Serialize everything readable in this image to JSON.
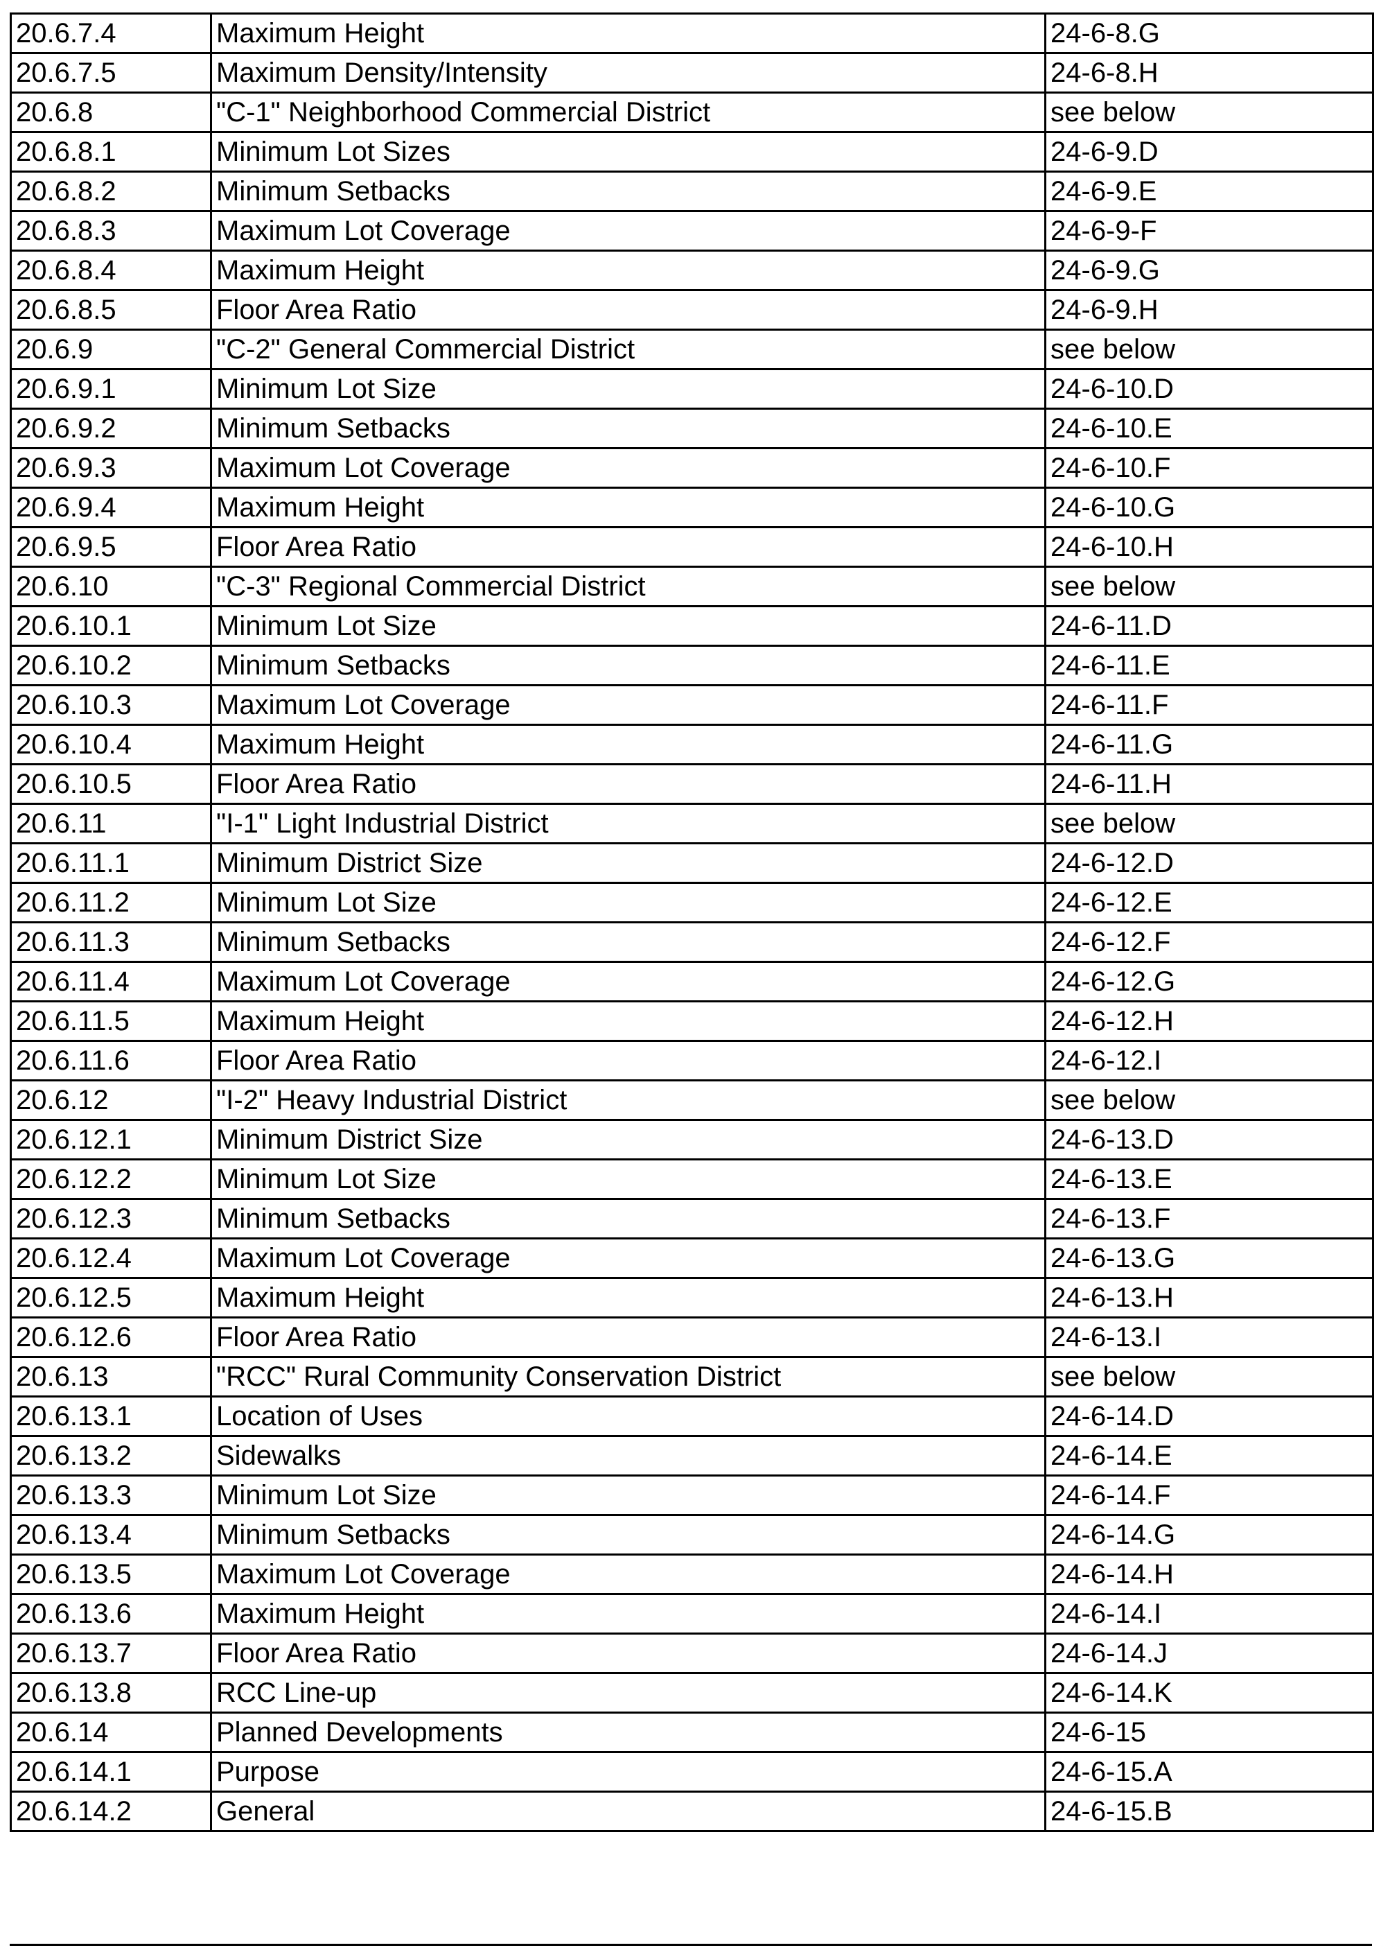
{
  "rows": [
    [
      "20.6.7.4",
      "Maximum Height",
      "24-6-8.G"
    ],
    [
      "20.6.7.5",
      "Maximum Density/Intensity",
      "24-6-8.H"
    ],
    [
      "20.6.8",
      "\"C-1\" Neighborhood Commercial District",
      "see below"
    ],
    [
      "20.6.8.1",
      "Minimum Lot Sizes",
      "24-6-9.D"
    ],
    [
      "20.6.8.2",
      "Minimum Setbacks",
      "24-6-9.E"
    ],
    [
      "20.6.8.3",
      "Maximum Lot Coverage",
      "24-6-9-F"
    ],
    [
      "20.6.8.4",
      "Maximum Height",
      "24-6-9.G"
    ],
    [
      "20.6.8.5",
      "Floor Area Ratio",
      "24-6-9.H"
    ],
    [
      "20.6.9",
      "\"C-2\" General Commercial District",
      "see below"
    ],
    [
      "20.6.9.1",
      "Minimum Lot Size",
      "24-6-10.D"
    ],
    [
      "20.6.9.2",
      "Minimum Setbacks",
      "24-6-10.E"
    ],
    [
      "20.6.9.3",
      "Maximum Lot Coverage",
      "24-6-10.F"
    ],
    [
      "20.6.9.4",
      "Maximum Height",
      "24-6-10.G"
    ],
    [
      "20.6.9.5",
      "Floor Area Ratio",
      "24-6-10.H"
    ],
    [
      "20.6.10",
      "\"C-3\" Regional Commercial District",
      "see below"
    ],
    [
      "20.6.10.1",
      "Minimum Lot Size",
      "24-6-11.D"
    ],
    [
      "20.6.10.2",
      "Minimum Setbacks",
      "24-6-11.E"
    ],
    [
      "20.6.10.3",
      "Maximum Lot Coverage",
      "24-6-11.F"
    ],
    [
      "20.6.10.4",
      "Maximum Height",
      "24-6-11.G"
    ],
    [
      "20.6.10.5",
      "Floor Area Ratio",
      "24-6-11.H"
    ],
    [
      "20.6.11",
      "\"I-1\" Light Industrial District",
      "see below"
    ],
    [
      "20.6.11.1",
      "Minimum District Size",
      "24-6-12.D"
    ],
    [
      "20.6.11.2",
      "Minimum Lot Size",
      "24-6-12.E"
    ],
    [
      "20.6.11.3",
      "Minimum Setbacks",
      "24-6-12.F"
    ],
    [
      "20.6.11.4",
      "Maximum Lot Coverage",
      "24-6-12.G"
    ],
    [
      "20.6.11.5",
      "Maximum Height",
      "24-6-12.H"
    ],
    [
      "20.6.11.6",
      "Floor Area Ratio",
      "24-6-12.I"
    ],
    [
      "20.6.12",
      "\"I-2\" Heavy Industrial District",
      "see below"
    ],
    [
      "20.6.12.1",
      "Minimum District Size",
      "24-6-13.D"
    ],
    [
      "20.6.12.2",
      "Minimum Lot Size",
      "24-6-13.E"
    ],
    [
      "20.6.12.3",
      "Minimum Setbacks",
      "24-6-13.F"
    ],
    [
      "20.6.12.4",
      "Maximum Lot Coverage",
      "24-6-13.G"
    ],
    [
      "20.6.12.5",
      "Maximum Height",
      "24-6-13.H"
    ],
    [
      "20.6.12.6",
      "Floor Area Ratio",
      "24-6-13.I"
    ],
    [
      "20.6.13",
      "\"RCC\" Rural Community Conservation District",
      "see below"
    ],
    [
      "20.6.13.1",
      "Location of Uses",
      "24-6-14.D"
    ],
    [
      "20.6.13.2",
      "Sidewalks",
      "24-6-14.E"
    ],
    [
      "20.6.13.3",
      "Minimum Lot Size",
      "24-6-14.F"
    ],
    [
      "20.6.13.4",
      "Minimum Setbacks",
      "24-6-14.G"
    ],
    [
      "20.6.13.5",
      "Maximum Lot Coverage",
      "24-6-14.H"
    ],
    [
      "20.6.13.6",
      "Maximum Height",
      "24-6-14.I"
    ],
    [
      "20.6.13.7",
      "Floor Area Ratio",
      "24-6-14.J"
    ],
    [
      "20.6.13.8",
      "RCC Line-up",
      "24-6-14.K"
    ],
    [
      "20.6.14",
      "Planned Developments",
      "24-6-15"
    ],
    [
      "20.6.14.1",
      "Purpose",
      "24-6-15.A"
    ],
    [
      "20.6.14.2",
      "General",
      "24-6-15.B"
    ]
  ]
}
